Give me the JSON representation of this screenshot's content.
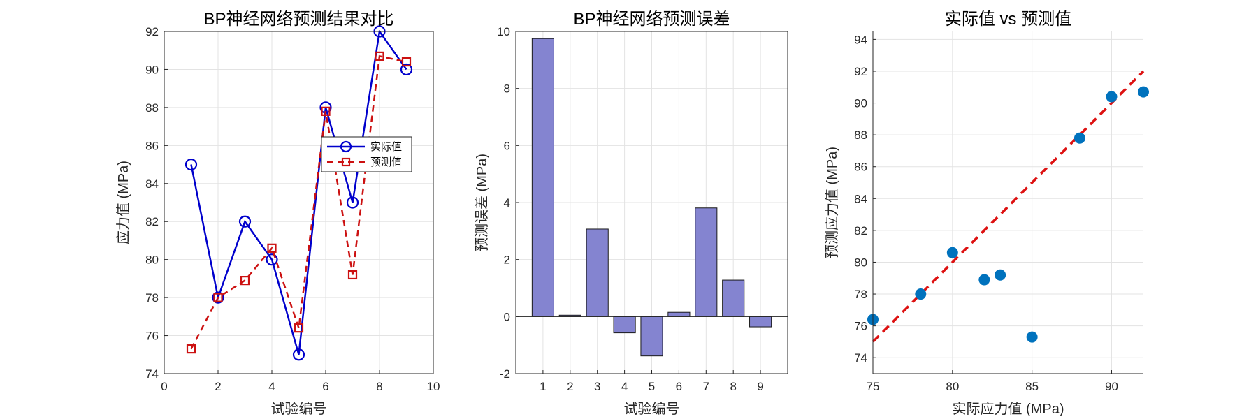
{
  "chart_data": [
    {
      "type": "line",
      "title": "BP神经网络预测结果对比",
      "xlabel": "试验编号",
      "ylabel": "应力值 (MPa)",
      "xlim": [
        0,
        10
      ],
      "ylim": [
        74,
        92
      ],
      "xticks": [
        0,
        2,
        4,
        6,
        8,
        10
      ],
      "yticks": [
        74,
        76,
        78,
        80,
        82,
        84,
        86,
        88,
        90,
        92
      ],
      "grid": true,
      "legend_position": "right",
      "x": [
        1,
        2,
        3,
        4,
        5,
        6,
        7,
        8,
        9
      ],
      "series": [
        {
          "name": "实际值",
          "values": [
            85,
            78,
            82,
            80,
            75,
            88,
            83,
            92,
            90
          ],
          "color": "#0000cc",
          "marker": "circle",
          "line": "solid"
        },
        {
          "name": "预测值",
          "values": [
            75.3,
            78.0,
            78.9,
            80.6,
            76.4,
            87.8,
            79.2,
            90.7,
            90.4
          ],
          "color": "#cc1111",
          "marker": "square",
          "line": "dashed"
        }
      ]
    },
    {
      "type": "bar",
      "title": "BP神经网络预测误差",
      "xlabel": "试验编号",
      "ylabel": "预测误差 (MPa)",
      "categories": [
        "1",
        "2",
        "3",
        "4",
        "5",
        "6",
        "7",
        "8",
        "9"
      ],
      "values": [
        9.75,
        0.05,
        3.07,
        -0.57,
        -1.38,
        0.15,
        3.81,
        1.28,
        -0.36
      ],
      "ylim": [
        -2,
        10
      ],
      "yticks": [
        -2,
        0,
        2,
        4,
        6,
        8,
        10
      ],
      "grid": true,
      "color": "#8484d0"
    },
    {
      "type": "scatter",
      "title": "实际值 vs 预测值",
      "xlabel": "实际应力值 (MPa)",
      "ylabel": "预测应力值 (MPa)",
      "xlim": [
        75,
        92
      ],
      "ylim": [
        73,
        94.5
      ],
      "xticks": [
        75,
        80,
        85,
        90
      ],
      "yticks": [
        74,
        76,
        78,
        80,
        82,
        84,
        86,
        88,
        90,
        92,
        94
      ],
      "grid": true,
      "points": [
        {
          "x": 75,
          "y": 76.4
        },
        {
          "x": 78,
          "y": 78.0
        },
        {
          "x": 80,
          "y": 80.6
        },
        {
          "x": 82,
          "y": 78.9
        },
        {
          "x": 83,
          "y": 79.2
        },
        {
          "x": 85,
          "y": 75.3
        },
        {
          "x": 88,
          "y": 87.8
        },
        {
          "x": 90,
          "y": 90.4
        },
        {
          "x": 92,
          "y": 90.7
        }
      ],
      "reference_line": {
        "x": [
          75,
          92
        ],
        "y": [
          75,
          92
        ],
        "color": "#dd1111",
        "style": "dashed"
      },
      "point_color": "#0072bd"
    }
  ]
}
